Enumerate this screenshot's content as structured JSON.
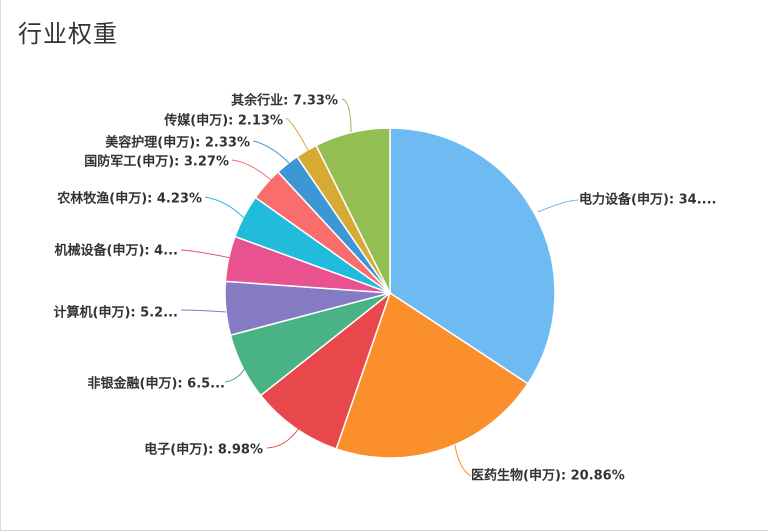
{
  "page": {
    "title": "行业权重"
  },
  "chart_data": {
    "type": "pie",
    "title": "行业权重",
    "start_angle_deg": 90,
    "direction": "clockwise",
    "slices": [
      {
        "name": "电力设备(申万)",
        "value": 34.0,
        "label": "电力设备(申万): 34....",
        "color": "#6ebaf2"
      },
      {
        "name": "医药生物(申万)",
        "value": 20.86,
        "label": "医药生物(申万): 20.86%",
        "color": "#fb8f2c"
      },
      {
        "name": "电子(申万)",
        "value": 8.98,
        "label": "电子(申万): 8.98%",
        "color": "#e8474c"
      },
      {
        "name": "非银金融(申万)",
        "value": 6.5,
        "label": "非银金融(申万): 6.5...",
        "color": "#4ab386"
      },
      {
        "name": "计算机(申万)",
        "value": 5.2,
        "label": "计算机(申万): 5.2...",
        "color": "#857bc3"
      },
      {
        "name": "机械设备(申万)",
        "value": 4.4,
        "label": "机械设备(申万): 4...",
        "color": "#e8528e"
      },
      {
        "name": "农林牧渔(申万)",
        "value": 4.23,
        "label": "农林牧渔(申万): 4.23%",
        "color": "#21bbdc"
      },
      {
        "name": "国防军工(申万)",
        "value": 3.27,
        "label": "国防军工(申万): 3.27%",
        "color": "#fa6d6d"
      },
      {
        "name": "美容护理(申万)",
        "value": 2.33,
        "label": "美容护理(申万): 2.33%",
        "color": "#3d96d6"
      },
      {
        "name": "传媒(申万)",
        "value": 2.13,
        "label": "传媒(申万): 2.13%",
        "color": "#d7aa34"
      },
      {
        "name": "其余行业",
        "value": 7.33,
        "label": "其余行业: 7.33%",
        "color": "#92be52"
      }
    ]
  }
}
